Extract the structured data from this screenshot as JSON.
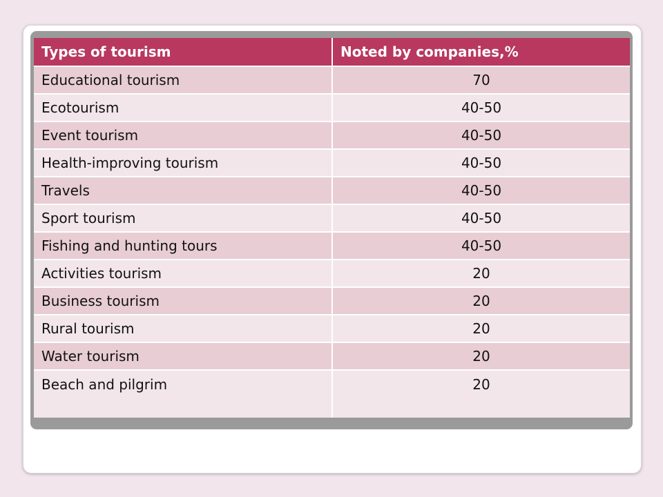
{
  "table": {
    "headers": {
      "type": "Types of tourism",
      "value": "Noted by companies,%"
    },
    "rows": [
      {
        "type": "Educational tourism",
        "value": "70"
      },
      {
        "type": "Ecotourism",
        "value": "40-50"
      },
      {
        "type": "Event tourism",
        "value": "40-50"
      },
      {
        "type": "Health-improving tourism",
        "value": "40-50"
      },
      {
        "type": "Travels",
        "value": "40-50"
      },
      {
        "type": "Sport tourism",
        "value": "40-50"
      },
      {
        "type": "Fishing and hunting tours",
        "value": "40-50"
      },
      {
        "type": "Activities tourism",
        "value": "20"
      },
      {
        "type": "Business tourism",
        "value": "20"
      },
      {
        "type": "Rural tourism",
        "value": "20"
      },
      {
        "type": "Water tourism",
        "value": "20"
      },
      {
        "type": "Beach and pilgrim",
        "value": "20"
      }
    ]
  },
  "colors": {
    "header": "#b8385f",
    "row_odd": "#e8cdd5",
    "row_even": "#f2e6ea",
    "background": "#f2e6ec"
  }
}
